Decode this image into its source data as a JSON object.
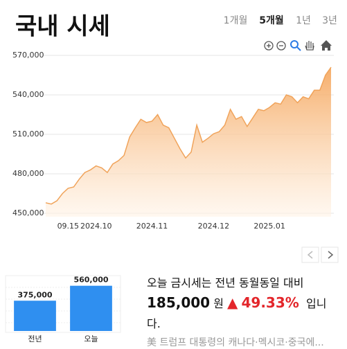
{
  "header": {
    "title": "국내 시세",
    "tabs": [
      "1개월",
      "5개월",
      "1년",
      "3년"
    ]
  },
  "chart_data": [
    {
      "type": "area",
      "color": "#f0a35a",
      "categories": [
        null,
        null,
        null,
        null,
        "09.15",
        null,
        null,
        null,
        null,
        "2024.10",
        null,
        null,
        null,
        null,
        null,
        null,
        null,
        null,
        null,
        "2024.11",
        null,
        null,
        null,
        null,
        null,
        null,
        null,
        null,
        null,
        null,
        "2024.12",
        null,
        null,
        null,
        null,
        null,
        null,
        null,
        null,
        null,
        "2025.01",
        null,
        null,
        null,
        null,
        null,
        null,
        null,
        null,
        null,
        null,
        null
      ],
      "values": [
        458000,
        457000,
        459500,
        465000,
        469000,
        470000,
        476000,
        481000,
        483000,
        486000,
        484500,
        481000,
        487500,
        490000,
        494000,
        508000,
        515000,
        521500,
        519000,
        520000,
        525000,
        517000,
        515000,
        507000,
        499000,
        492000,
        496500,
        517000,
        504000,
        507000,
        510500,
        512000,
        517000,
        529000,
        521500,
        523500,
        516000,
        522500,
        529000,
        528000,
        530500,
        534000,
        533000,
        540000,
        538500,
        534000,
        538500,
        537000,
        543500,
        543500,
        555000,
        561000
      ],
      "ylim": [
        450000,
        570000
      ],
      "yticks": [
        {
          "value": 450000,
          "label": "450,000"
        },
        {
          "value": 480000,
          "label": "480,000"
        },
        {
          "value": 510000,
          "label": "510,000"
        },
        {
          "value": 540000,
          "label": "540,000"
        },
        {
          "value": 570000,
          "label": "570,000"
        }
      ],
      "grid": true
    },
    {
      "type": "bar",
      "color": "#2f8ff0",
      "categories": [
        "전년",
        "오늘"
      ],
      "values": [
        375000,
        560000
      ],
      "value_labels": [
        "375,000",
        "560,000"
      ],
      "ylim": [
        0,
        600000
      ]
    }
  ],
  "summary": {
    "intro": "오늘 금시세는 전년 동월동일 대비",
    "difference": "185,000",
    "unit": "원",
    "arrow": "▲",
    "percent": "49.33%",
    "ending": "입니다."
  },
  "news": "美 트럼프 대통령의 캐나다·멕시코·중국에..."
}
